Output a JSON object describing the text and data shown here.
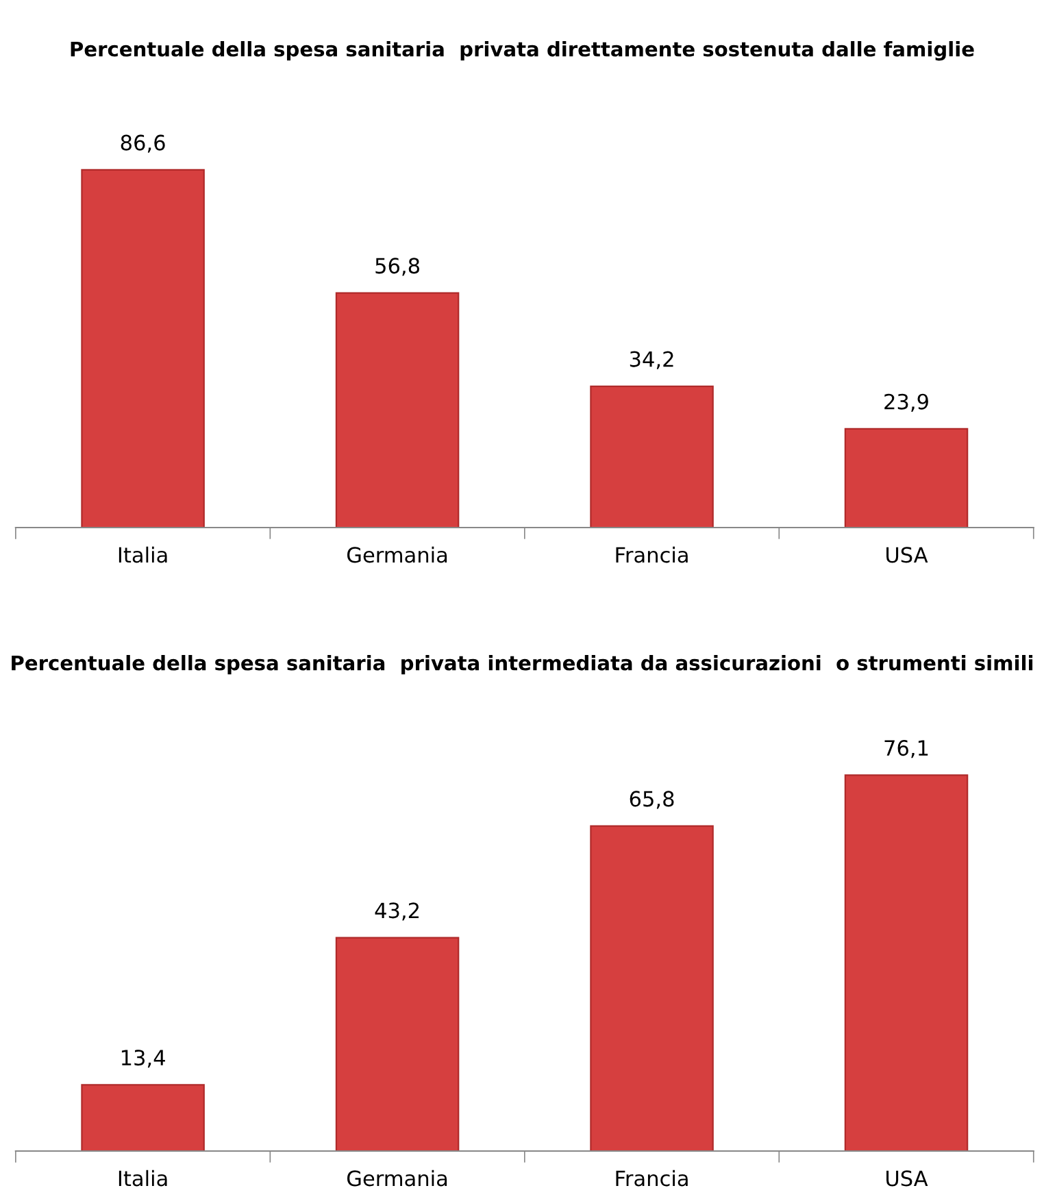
{
  "chart_data": [
    {
      "type": "bar",
      "title": "Percentuale della spesa sanitaria  privata direttamente sostenuta dalle famiglie",
      "categories": [
        "Italia",
        "Germania",
        "Francia",
        "USA"
      ],
      "values": [
        86.6,
        56.8,
        34.2,
        23.9
      ],
      "value_labels": [
        "86,6",
        "56,8",
        "34,2",
        "23,9"
      ],
      "color": "#d63f3f",
      "grid": false,
      "legend": false
    },
    {
      "type": "bar",
      "title": "Percentuale della spesa sanitaria  privata intermediata da assicurazioni  o strumenti simili",
      "categories": [
        "Italia",
        "Germania",
        "Francia",
        "USA"
      ],
      "values": [
        13.4,
        43.2,
        65.8,
        76.1
      ],
      "value_labels": [
        "13,4",
        "43,2",
        "65,8",
        "76,1"
      ],
      "color": "#d63f3f",
      "grid": false,
      "legend": false
    }
  ]
}
